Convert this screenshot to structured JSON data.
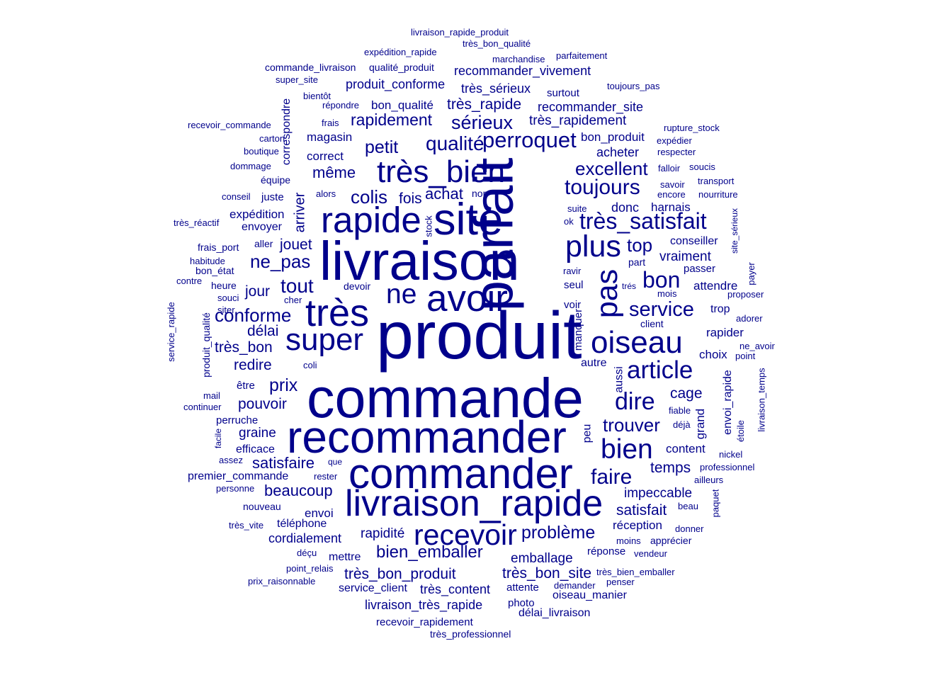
{
  "color": "#00008b",
  "words": [
    "produit",
    "commande",
    "livraison",
    "parfait",
    "recommander",
    "commander",
    "site",
    "livraison_rapide",
    "très",
    "rapide",
    "avoir",
    "très_bien",
    "super",
    "recevoir",
    "oiseau",
    "plus",
    "pas",
    "ne",
    "article",
    "bien",
    "très_satisfait",
    "perroquet",
    "toujours",
    "service",
    "bon",
    "dire",
    "faire",
    "tout",
    "excellent",
    "sérieux",
    "qualité",
    "petit",
    "conforme",
    "prix",
    "ne_pas",
    "colis",
    "trouver",
    "top",
    "bien_emballer",
    "problème",
    "très_bon_produit",
    "très_bon_site",
    "rapidement",
    "très_rapide",
    "très_rapidement",
    "même",
    "fois",
    "achat",
    "cage",
    "temps",
    "satisfaire",
    "beaucoup",
    "impeccable",
    "satisfait",
    "très_bon",
    "redire",
    "délai",
    "jour",
    "jouet",
    "pouvoir",
    "recommander_vivement",
    "très_sérieux",
    "recommander_site",
    "produit_conforme",
    "bon_qualité",
    "livraison_très_rapide",
    "très_content",
    "service_client",
    "emballage",
    "réception",
    "rapidité",
    "cordialement",
    "magasin",
    "correct",
    "acheter",
    "bon_produit",
    "donc",
    "harnais",
    "vraiment",
    "graine",
    "efficace",
    "premier_commande",
    "envoi",
    "téléphone",
    "mettre",
    "expédition",
    "envoyer",
    "arriver",
    "correspondre",
    "envoi_rapide",
    "grand",
    "peu",
    "aussi",
    "manquer",
    "autre",
    "content",
    "rapider",
    "choix",
    "attendre",
    "passer",
    "conseiller",
    "trop",
    "seul",
    "voir",
    "client",
    "oiseau_manier",
    "délai_livraison",
    "recevoir_rapidement",
    "très_professionnel",
    "photo",
    "attente",
    "demander",
    "penser",
    "très_bien_emballer",
    "vendeur",
    "apprécier",
    "donner",
    "beau",
    "paquet",
    "ailleurs",
    "professionnel",
    "nickel",
    "déjà",
    "fiable",
    "étoile",
    "livraison_temps",
    "point",
    "ne_avoir",
    "adorer",
    "proposer",
    "payer",
    "site_sérieux",
    "mois",
    "trés",
    "ravir",
    "ok",
    "suite",
    "part",
    "nourriture",
    "transport",
    "soucis",
    "savoir",
    "falloir",
    "encore",
    "respecter",
    "expédier",
    "rupture_stock",
    "toujours_pas",
    "surtout",
    "parfaitement",
    "marchandise",
    "très_bon_qualité",
    "livraison_rapide_produit",
    "expédition_rapide",
    "qualité_produit",
    "commande_livraison",
    "super_site",
    "bientôt",
    "répondre",
    "frais",
    "recevoir_commande",
    "carton",
    "boutique",
    "dommage",
    "équipe",
    "juste",
    "alors",
    "non",
    "stock",
    "conseil",
    "très_réactif",
    "frais_port",
    "aller",
    "habitude",
    "bon_état",
    "contre",
    "heure",
    "devoir",
    "souci",
    "cher",
    "siter",
    "service_rapide",
    "produit_qualité",
    "coli",
    "être",
    "mail",
    "continuer",
    "perruche",
    "facile",
    "assez",
    "que",
    "rester",
    "personne",
    "nouveau",
    "très_vite",
    "déçu",
    "point_relais",
    "prix_raisonnable",
    "moins",
    "réponse"
  ]
}
